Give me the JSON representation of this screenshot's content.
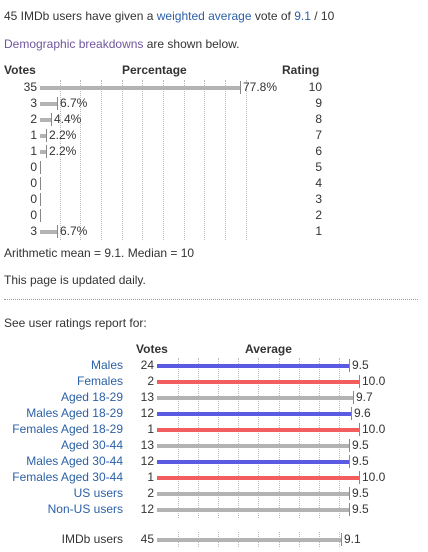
{
  "summary": {
    "prefix": "45 IMDb users have given a",
    "link_text": "weighted average",
    "middle": "vote of",
    "vote_value": "9.1",
    "suffix": "/ 10"
  },
  "demographic": {
    "link_text": "Demographic breakdowns",
    "suffix": "are shown below."
  },
  "histogram": {
    "headers": {
      "votes": "Votes",
      "percentage": "Percentage",
      "rating": "Rating"
    },
    "rows": [
      {
        "votes": "35",
        "percent": "77.8%",
        "fraction": 0.778,
        "rating": "10"
      },
      {
        "votes": "3",
        "percent": "6.7%",
        "fraction": 0.067,
        "rating": "9"
      },
      {
        "votes": "2",
        "percent": "4.4%",
        "fraction": 0.044,
        "rating": "8"
      },
      {
        "votes": "1",
        "percent": "2.2%",
        "fraction": 0.022,
        "rating": "7"
      },
      {
        "votes": "1",
        "percent": "2.2%",
        "fraction": 0.022,
        "rating": "6"
      },
      {
        "votes": "0",
        "percent": "",
        "fraction": 0,
        "rating": "5"
      },
      {
        "votes": "0",
        "percent": "",
        "fraction": 0,
        "rating": "4"
      },
      {
        "votes": "0",
        "percent": "",
        "fraction": 0,
        "rating": "3"
      },
      {
        "votes": "0",
        "percent": "",
        "fraction": 0,
        "rating": "2"
      },
      {
        "votes": "3",
        "percent": "6.7%",
        "fraction": 0.067,
        "rating": "1"
      }
    ]
  },
  "stats": {
    "text": "Arithmetic mean = 9.1.  Median = 10"
  },
  "updated": {
    "text": "This page is updated daily."
  },
  "report": {
    "label": "See user ratings report for:"
  },
  "demographics": {
    "headers": {
      "votes": "Votes",
      "average": "Average"
    },
    "rows": [
      {
        "label": "Males",
        "votes": "24",
        "average": "9.5",
        "value": 9.5,
        "color": "#5c59e2"
      },
      {
        "label": "Females",
        "votes": "2",
        "average": "10.0",
        "value": 10.0,
        "color": "#f25e5e"
      },
      {
        "label": "Aged 18-29",
        "votes": "13",
        "average": "9.7",
        "value": 9.7,
        "color": "#b3b3b3"
      },
      {
        "label": "Males Aged 18-29",
        "votes": "12",
        "average": "9.6",
        "value": 9.6,
        "color": "#5c59e2"
      },
      {
        "label": "Females Aged 18-29",
        "votes": "1",
        "average": "10.0",
        "value": 10.0,
        "color": "#f25e5e"
      },
      {
        "label": "Aged 30-44",
        "votes": "13",
        "average": "9.5",
        "value": 9.5,
        "color": "#b3b3b3"
      },
      {
        "label": "Males Aged 30-44",
        "votes": "12",
        "average": "9.5",
        "value": 9.5,
        "color": "#5c59e2"
      },
      {
        "label": "Females Aged 30-44",
        "votes": "1",
        "average": "10.0",
        "value": 10.0,
        "color": "#f25e5e"
      },
      {
        "label": "US users",
        "votes": "2",
        "average": "9.5",
        "value": 9.5,
        "color": "#b3b3b3"
      },
      {
        "label": "Non-US users",
        "votes": "12",
        "average": "9.5",
        "value": 9.5,
        "color": "#b3b3b3"
      }
    ],
    "imdb": {
      "label": "IMDb users",
      "votes": "45",
      "average": "9.1",
      "value": 9.1
    }
  }
}
